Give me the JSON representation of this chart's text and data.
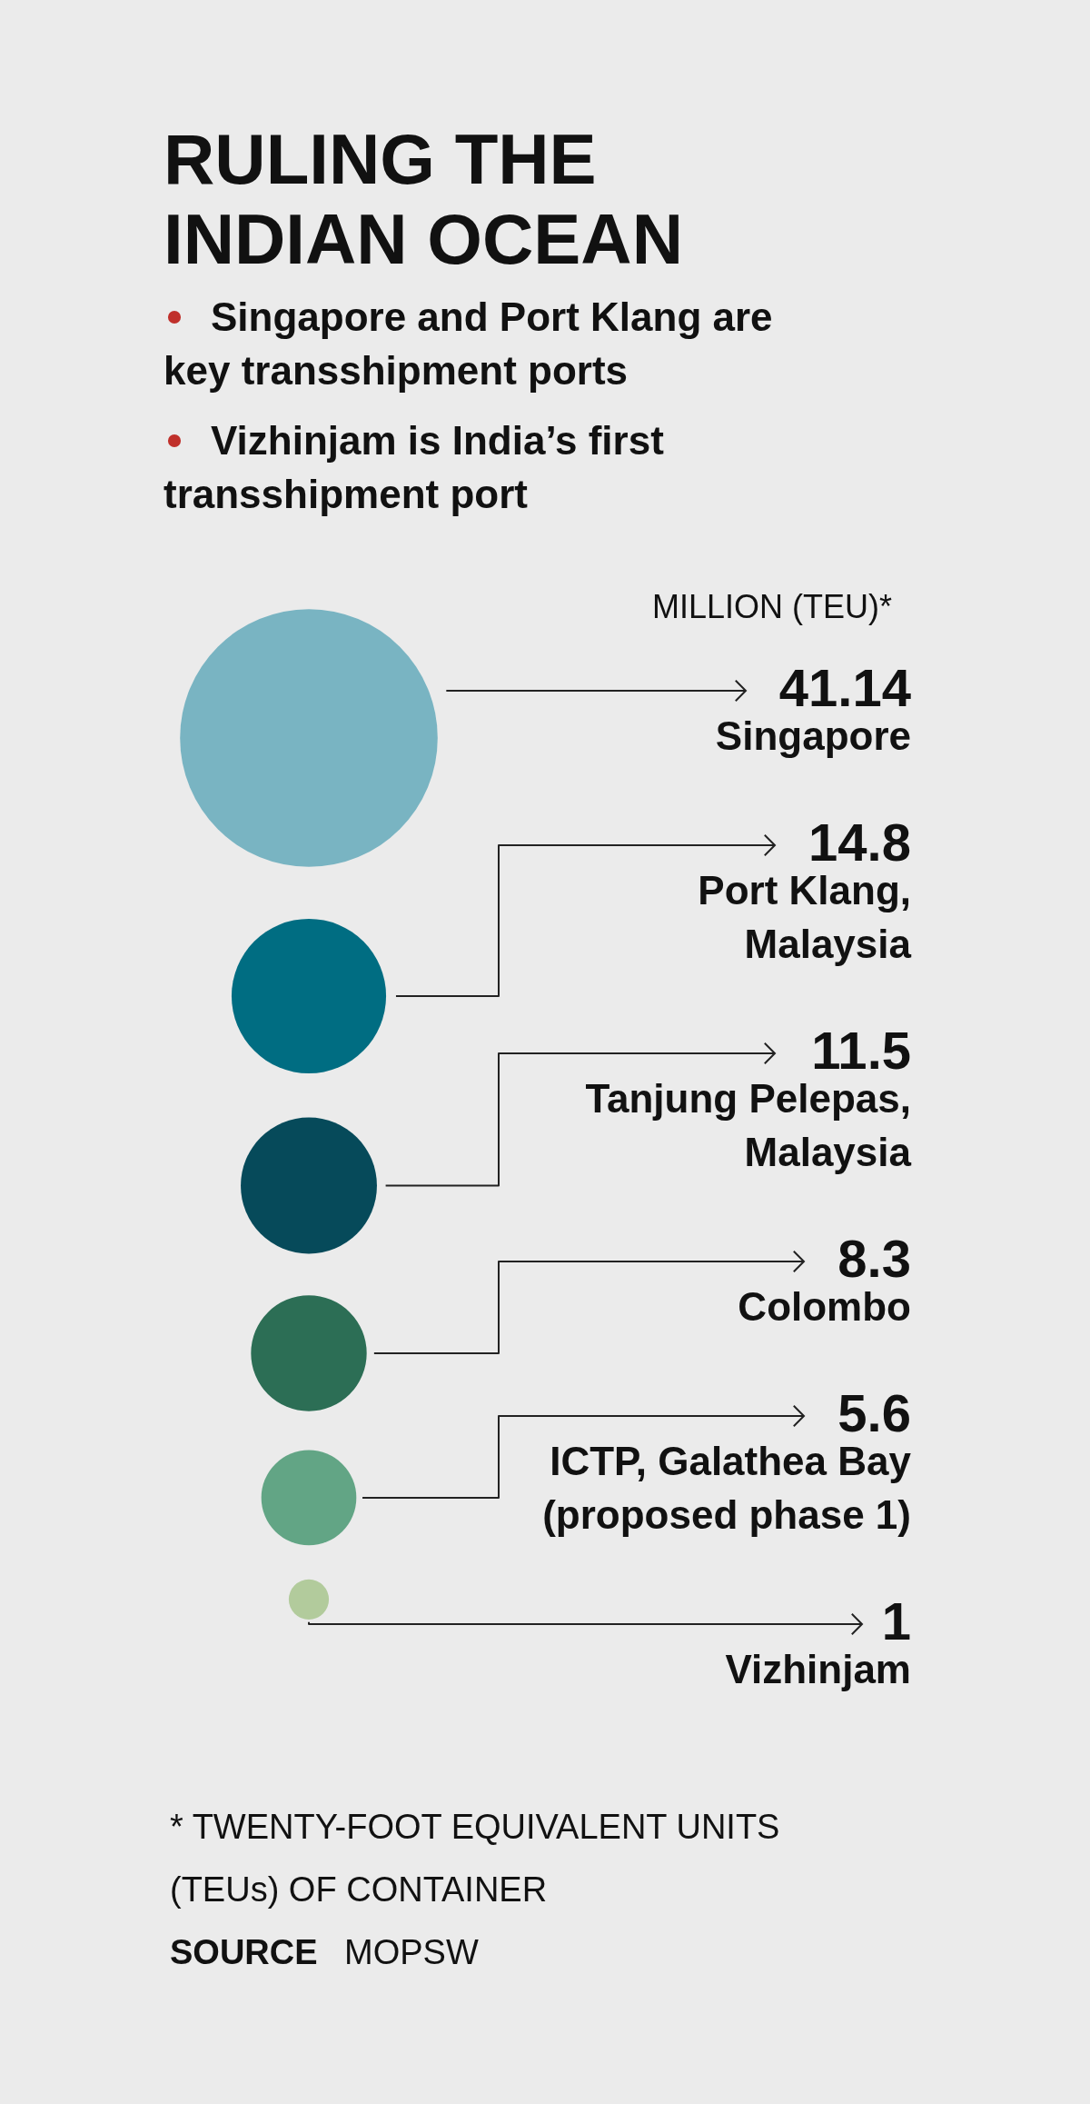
{
  "chart_data": {
    "type": "other",
    "title": "RULING THE\nINDIAN OCEAN",
    "subtitle": "Singapore and Port Klang are key transshipment ports\nVizhinjam is India’s first transshipment port",
    "categories": [
      "Singapore",
      "Port Klang,\nMalaysia",
      "Tanjung Pelepas,\nMalaysia",
      "Colombo",
      "ICTP, Galathea Bay\n(proposed phase 1)",
      "Vizhinjam"
    ],
    "values": [
      41.14,
      14.8,
      11.5,
      8.3,
      5.6,
      1
    ],
    "colors": [
      "#79b4c2",
      "#006d82",
      "#064a5a",
      "#2c6e55",
      "#62a585",
      "#b2cb9c"
    ],
    "data_labels": true,
    "annotations": [
      "MILLION (TEU)*",
      "* TWENTY-FOOT EQUIVALENT UNITS (TEUs) OF CONTAINER",
      "SOURCE MOPSW"
    ]
  }
}
